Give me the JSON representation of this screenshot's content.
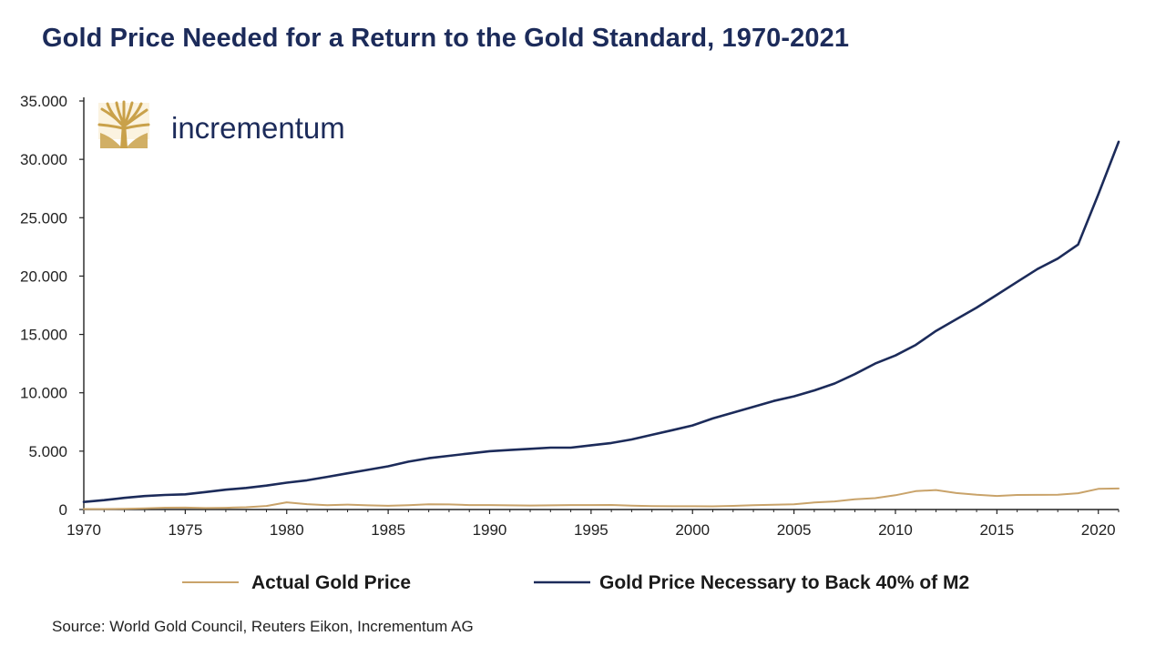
{
  "title": "Gold Price Needed for a Return to the Gold Standard, 1970-2021",
  "source": "Source: World Gold Council, Reuters Eikon, Incrementum AG",
  "logo": {
    "brand_name": "incrementum",
    "icon": "tree-icon",
    "color": "#c9a14a"
  },
  "colors": {
    "actual": "#c9a36a",
    "backing": "#1c2b5a",
    "axis": "#222222"
  },
  "chart_data": {
    "type": "line",
    "title": "Gold Price Needed for a Return to the Gold Standard, 1970-2021",
    "xlabel": "",
    "ylabel": "",
    "xlim": [
      1970,
      2021
    ],
    "ylim": [
      0,
      35000
    ],
    "x_ticks": [
      1970,
      1975,
      1980,
      1985,
      1990,
      1995,
      2000,
      2005,
      2010,
      2015,
      2020
    ],
    "x_tick_labels": [
      "1970",
      "1975",
      "1980",
      "1985",
      "1990",
      "1995",
      "2000",
      "2005",
      "2010",
      "2015",
      "2020"
    ],
    "y_ticks": [
      0,
      5000,
      10000,
      15000,
      20000,
      25000,
      30000,
      35000
    ],
    "y_tick_labels": [
      "0",
      "5.000",
      "10.000",
      "15.000",
      "20.000",
      "25.000",
      "30.000",
      "35.000"
    ],
    "grid": false,
    "legend_position": "bottom",
    "x": [
      1970,
      1971,
      1972,
      1973,
      1974,
      1975,
      1976,
      1977,
      1978,
      1979,
      1980,
      1981,
      1982,
      1983,
      1984,
      1985,
      1986,
      1987,
      1988,
      1989,
      1990,
      1991,
      1992,
      1993,
      1994,
      1995,
      1996,
      1997,
      1998,
      1999,
      2000,
      2001,
      2002,
      2003,
      2004,
      2005,
      2006,
      2007,
      2008,
      2009,
      2010,
      2011,
      2012,
      2013,
      2014,
      2015,
      2016,
      2017,
      2018,
      2019,
      2020,
      2021
    ],
    "series": [
      {
        "name": "Actual Gold Price",
        "color": "#c9a36a",
        "values": [
          36,
          41,
          58,
          97,
          154,
          161,
          125,
          148,
          193,
          306,
          615,
          460,
          376,
          424,
          361,
          317,
          368,
          447,
          437,
          381,
          384,
          362,
          344,
          360,
          384,
          384,
          388,
          331,
          294,
          279,
          279,
          271,
          310,
          363,
          409,
          444,
          604,
          697,
          872,
          972,
          1225,
          1572,
          1669,
          1411,
          1266,
          1160,
          1251,
          1257,
          1268,
          1393,
          1770,
          1799
        ]
      },
      {
        "name": "Gold Price Necessary to Back 40% of M2",
        "color": "#1c2b5a",
        "values": [
          650,
          800,
          1000,
          1150,
          1250,
          1300,
          1500,
          1700,
          1850,
          2050,
          2300,
          2500,
          2800,
          3100,
          3400,
          3700,
          4100,
          4400,
          4600,
          4800,
          5000,
          5100,
          5200,
          5300,
          5300,
          5500,
          5700,
          6000,
          6400,
          6800,
          7200,
          7800,
          8300,
          8800,
          9300,
          9700,
          10200,
          10800,
          11600,
          12500,
          13200,
          14100,
          15300,
          16300,
          17300,
          18400,
          19500,
          20600,
          21500,
          22700,
          27000,
          31500
        ]
      }
    ]
  }
}
